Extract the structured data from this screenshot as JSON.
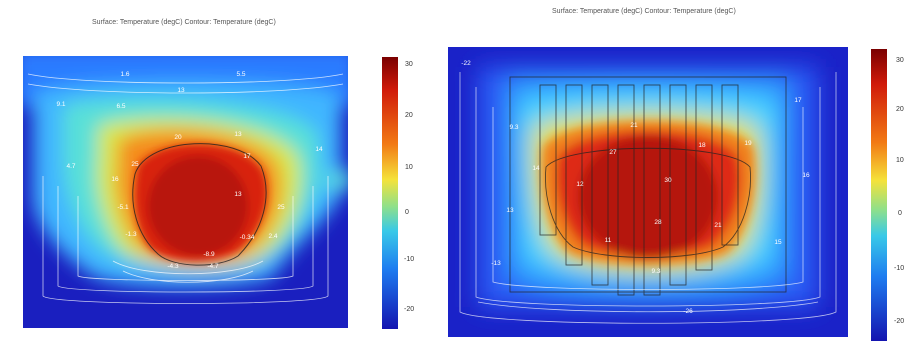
{
  "left": {
    "title": "Surface: Temperature (degC)  Contour: Temperature (degC)",
    "colorbar_ticks": [
      "30",
      "20",
      "10",
      "0",
      "-10",
      "-20"
    ],
    "contour_labels": [
      "1.6",
      "5.5",
      "13",
      "9.1",
      "6.5",
      "20",
      "13",
      "17",
      "25",
      "16",
      "4.7",
      "14",
      "-5.1",
      "13",
      "25",
      "-1.3",
      "-8.9",
      "2.4",
      "-0.34",
      "-4.3",
      "-4.7"
    ]
  },
  "right": {
    "title": "Surface: Temperature (degC)  Contour: Temperature (degC)",
    "colorbar_ticks": [
      "30",
      "20",
      "10",
      "0",
      "-10",
      "-20"
    ],
    "contour_labels": [
      "-22",
      "17",
      "9.3",
      "21",
      "27",
      "18",
      "19",
      "30",
      "14",
      "12",
      "28",
      "21",
      "16",
      "13",
      "-13",
      "11",
      "9.3",
      "15",
      "-26"
    ]
  }
}
